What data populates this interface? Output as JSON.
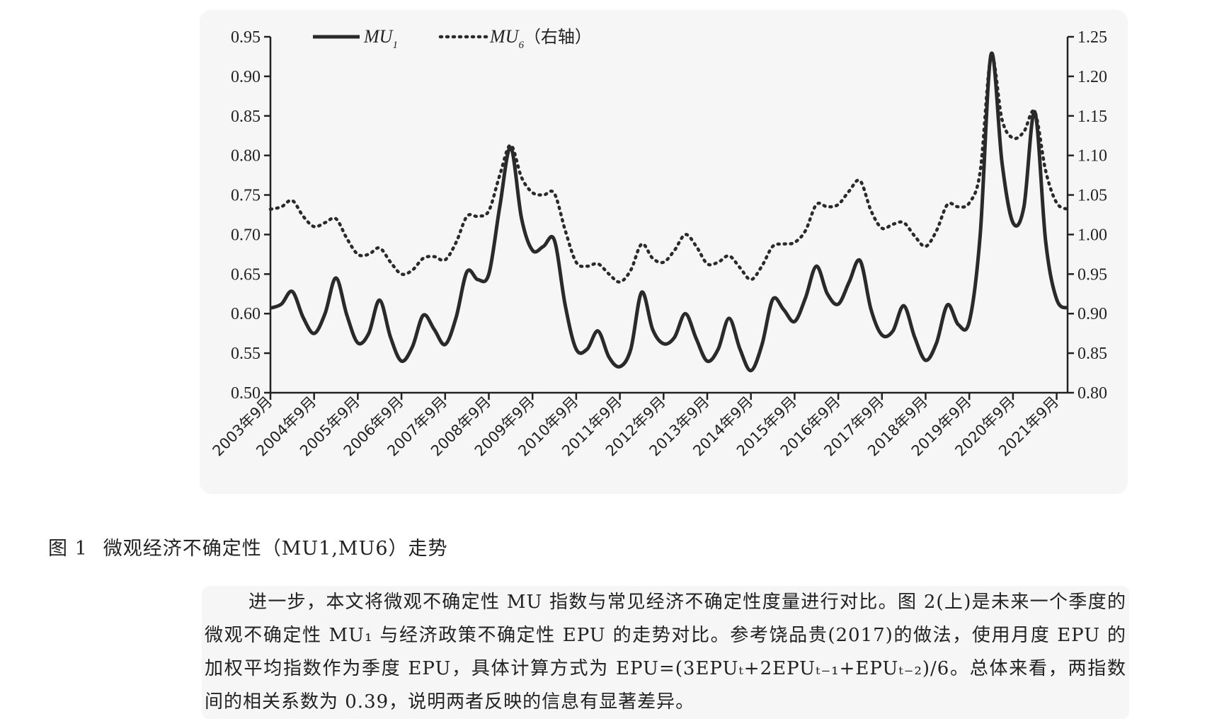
{
  "chart_data": {
    "type": "line",
    "legend": {
      "series1": "MU",
      "series1_sub": "1",
      "series2": "MU",
      "series2_sub": "6",
      "series2_note": "（右轴）",
      "placement": "top-left"
    },
    "categories": [
      "2003年9月",
      "2004年9月",
      "2005年9月",
      "2006年9月",
      "2007年9月",
      "2008年9月",
      "2009年9月",
      "2010年9月",
      "2011年9月",
      "2012年9月",
      "2013年9月",
      "2014年9月",
      "2015年9月",
      "2016年9月",
      "2017年9月",
      "2018年9月",
      "2019年9月",
      "2020年9月",
      "2021年9月"
    ],
    "yleft": {
      "lim": [
        0.5,
        0.95
      ],
      "ticks": [
        "0.50",
        "0.55",
        "0.60",
        "0.65",
        "0.70",
        "0.75",
        "0.80",
        "0.85",
        "0.90",
        "0.95"
      ]
    },
    "yright": {
      "lim": [
        0.8,
        1.25
      ],
      "ticks": [
        "0.80",
        "0.85",
        "0.90",
        "0.95",
        "1.00",
        "1.05",
        "1.10",
        "1.15",
        "1.20",
        "1.25"
      ]
    },
    "grid": false,
    "x_start": 2003.75,
    "x_end": 2022.0,
    "series": [
      {
        "name": "MU1",
        "axis": "left",
        "style": "solid",
        "x": [
          2003.75,
          2004.0,
          2004.25,
          2004.5,
          2004.75,
          2005.0,
          2005.25,
          2005.5,
          2005.75,
          2006.0,
          2006.25,
          2006.5,
          2006.75,
          2007.0,
          2007.25,
          2007.5,
          2007.75,
          2008.0,
          2008.25,
          2008.5,
          2008.75,
          2009.0,
          2009.25,
          2009.5,
          2009.75,
          2010.0,
          2010.25,
          2010.5,
          2010.75,
          2011.0,
          2011.25,
          2011.5,
          2011.75,
          2012.0,
          2012.25,
          2012.5,
          2012.75,
          2013.0,
          2013.25,
          2013.5,
          2013.75,
          2014.0,
          2014.25,
          2014.5,
          2014.75,
          2015.0,
          2015.25,
          2015.5,
          2015.75,
          2016.0,
          2016.25,
          2016.5,
          2016.75,
          2017.0,
          2017.25,
          2017.5,
          2017.75,
          2018.0,
          2018.25,
          2018.5,
          2018.75,
          2019.0,
          2019.25,
          2019.5,
          2019.75,
          2020.0,
          2020.25,
          2020.5,
          2020.75,
          2021.0,
          2021.25,
          2021.5,
          2021.75,
          2022.0
        ],
        "values": [
          0.607,
          0.612,
          0.628,
          0.595,
          0.575,
          0.6,
          0.645,
          0.598,
          0.563,
          0.575,
          0.617,
          0.57,
          0.54,
          0.558,
          0.598,
          0.58,
          0.561,
          0.595,
          0.653,
          0.643,
          0.65,
          0.735,
          0.81,
          0.72,
          0.68,
          0.685,
          0.693,
          0.61,
          0.555,
          0.555,
          0.578,
          0.545,
          0.533,
          0.555,
          0.627,
          0.58,
          0.562,
          0.57,
          0.6,
          0.568,
          0.54,
          0.555,
          0.594,
          0.555,
          0.528,
          0.56,
          0.618,
          0.605,
          0.59,
          0.62,
          0.66,
          0.625,
          0.612,
          0.64,
          0.667,
          0.605,
          0.573,
          0.578,
          0.61,
          0.57,
          0.541,
          0.563,
          0.611,
          0.586,
          0.59,
          0.7,
          0.928,
          0.79,
          0.715,
          0.735,
          0.855,
          0.69,
          0.618,
          0.607
        ]
      },
      {
        "name": "MU6",
        "axis": "right",
        "style": "dotted",
        "x": [
          2003.75,
          2004.0,
          2004.25,
          2004.5,
          2004.75,
          2005.0,
          2005.25,
          2005.5,
          2005.75,
          2006.0,
          2006.25,
          2006.5,
          2006.75,
          2007.0,
          2007.25,
          2007.5,
          2007.75,
          2008.0,
          2008.25,
          2008.5,
          2008.75,
          2009.0,
          2009.25,
          2009.5,
          2009.75,
          2010.0,
          2010.25,
          2010.5,
          2010.75,
          2011.0,
          2011.25,
          2011.5,
          2011.75,
          2012.0,
          2012.25,
          2012.5,
          2012.75,
          2013.0,
          2013.25,
          2013.5,
          2013.75,
          2014.0,
          2014.25,
          2014.5,
          2014.75,
          2015.0,
          2015.25,
          2015.5,
          2015.75,
          2016.0,
          2016.25,
          2016.5,
          2016.75,
          2017.0,
          2017.25,
          2017.5,
          2017.75,
          2018.0,
          2018.25,
          2018.5,
          2018.75,
          2019.0,
          2019.25,
          2019.5,
          2019.75,
          2020.0,
          2020.25,
          2020.5,
          2020.75,
          2021.0,
          2021.25,
          2021.5,
          2021.75,
          2022.0
        ],
        "values": [
          1.032,
          1.035,
          1.043,
          1.023,
          1.01,
          1.015,
          1.02,
          0.995,
          0.975,
          0.975,
          0.983,
          0.965,
          0.95,
          0.955,
          0.97,
          0.972,
          0.968,
          0.99,
          1.023,
          1.023,
          1.03,
          1.075,
          1.113,
          1.072,
          1.053,
          1.05,
          1.052,
          1.005,
          0.965,
          0.96,
          0.963,
          0.95,
          0.94,
          0.955,
          0.988,
          0.97,
          0.965,
          0.98,
          1.0,
          0.985,
          0.963,
          0.965,
          0.973,
          0.958,
          0.943,
          0.96,
          0.985,
          0.988,
          0.99,
          1.005,
          1.038,
          1.035,
          1.038,
          1.055,
          1.068,
          1.03,
          1.008,
          1.013,
          1.015,
          0.998,
          0.985,
          1.005,
          1.038,
          1.035,
          1.04,
          1.08,
          1.225,
          1.145,
          1.122,
          1.13,
          1.155,
          1.08,
          1.04,
          1.032
        ]
      }
    ]
  },
  "caption": {
    "label": "图 1",
    "text": "微观经济不确定性（MU1,MU6）走势"
  },
  "body_paragraph": "进一步，本文将微观不确定性 MU 指数与常见经济不确定性度量进行对比。图 2(上)是未来一个季度的微观不确定性 MU₁ 与经济政策不确定性 EPU 的走势对比。参考饶品贵(2017)的做法，使用月度 EPU 的加权平均指数作为季度 EPU，具体计算方式为 EPU=(3EPUₜ+2EPUₜ₋₁+EPUₜ₋₂)/6。总体来看，两指数间的相关系数为 0.39，说明两者反映的信息有显著差异。"
}
